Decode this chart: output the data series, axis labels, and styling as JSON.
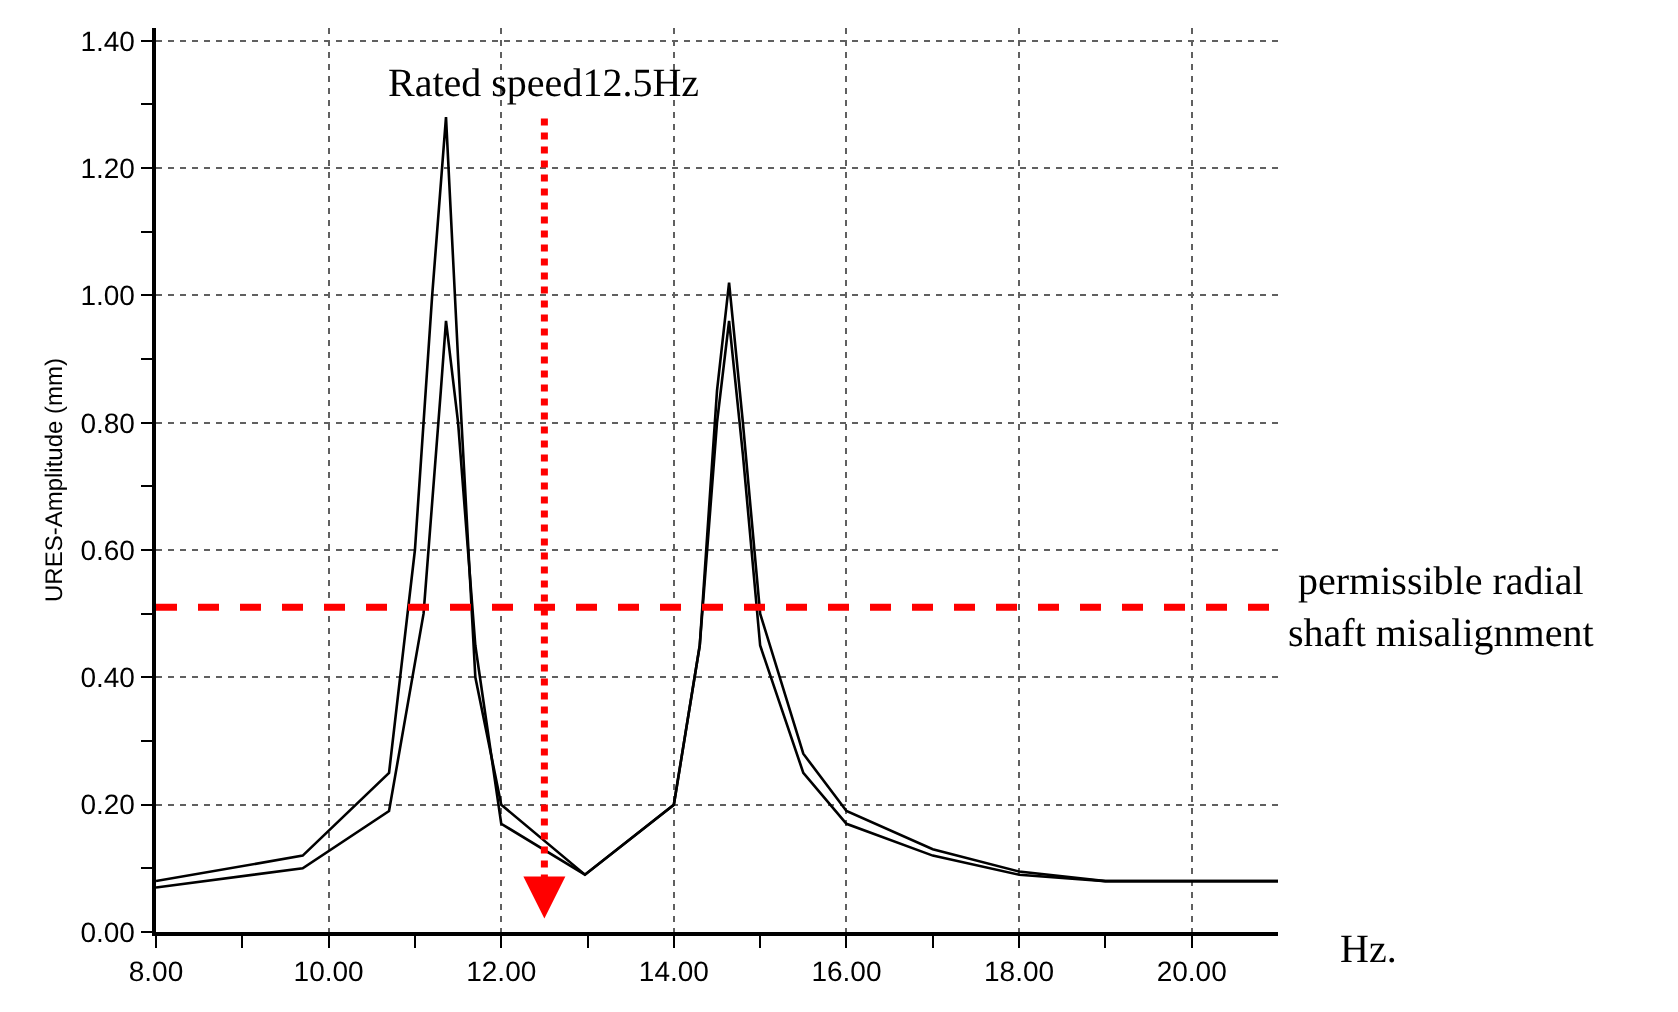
{
  "chart_data": {
    "type": "line",
    "xlabel": "Hz.",
    "ylabel": "URES-Amplitude (mm)",
    "xlim": [
      8,
      21
    ],
    "xticks": [
      {
        "value": 8,
        "label": "8.00"
      },
      {
        "value": 9,
        "label": null
      },
      {
        "value": 10,
        "label": "10.00"
      },
      {
        "value": 11,
        "label": null
      },
      {
        "value": 12,
        "label": "12.00"
      },
      {
        "value": 13,
        "label": null
      },
      {
        "value": 14,
        "label": "14.00"
      },
      {
        "value": 15,
        "label": null
      },
      {
        "value": 16,
        "label": "16.00"
      },
      {
        "value": 17,
        "label": null
      },
      {
        "value": 18,
        "label": "18.00"
      },
      {
        "value": 19,
        "label": null
      },
      {
        "value": 20,
        "label": "20.00"
      }
    ],
    "ylim": [
      0,
      1.42
    ],
    "yticks": [
      {
        "value": 0,
        "label": "0.00"
      },
      {
        "value": 0.1,
        "label": null
      },
      {
        "value": 0.2,
        "label": "0.20"
      },
      {
        "value": 0.3,
        "label": null
      },
      {
        "value": 0.4,
        "label": "0.40"
      },
      {
        "value": 0.5,
        "label": null
      },
      {
        "value": 0.6,
        "label": "0.60"
      },
      {
        "value": 0.7,
        "label": null
      },
      {
        "value": 0.8,
        "label": "0.80"
      },
      {
        "value": 0.9,
        "label": null
      },
      {
        "value": 1.0,
        "label": "1.00"
      },
      {
        "value": 1.1,
        "label": null
      },
      {
        "value": 1.2,
        "label": "1.20"
      },
      {
        "value": 1.3,
        "label": null
      },
      {
        "value": 1.4,
        "label": "1.40"
      }
    ],
    "grid": true,
    "line_style": "solid",
    "series": [
      {
        "color": "#000000",
        "x": [
          8,
          9.7,
          10.7,
          11.0,
          11.2,
          11.36,
          11.5,
          11.7,
          12.0,
          12.97,
          14.0,
          14.3,
          14.5,
          14.64,
          14.8,
          15.0,
          15.5,
          16,
          17,
          18,
          19,
          21
        ],
        "values": [
          0.08,
          0.12,
          0.25,
          0.6,
          1.0,
          1.28,
          0.9,
          0.4,
          0.2,
          0.09,
          0.2,
          0.45,
          0.8,
          0.96,
          0.75,
          0.45,
          0.25,
          0.17,
          0.12,
          0.09,
          0.08,
          0.08
        ]
      },
      {
        "color": "#000000",
        "x": [
          8,
          9.7,
          10.7,
          11.1,
          11.3,
          11.36,
          11.5,
          11.7,
          12.0,
          12.97,
          14.0,
          14.3,
          14.5,
          14.64,
          14.8,
          15.0,
          15.5,
          16,
          17,
          18,
          19,
          21
        ],
        "values": [
          0.07,
          0.1,
          0.19,
          0.5,
          0.85,
          0.96,
          0.8,
          0.45,
          0.17,
          0.09,
          0.2,
          0.45,
          0.85,
          1.02,
          0.8,
          0.5,
          0.28,
          0.19,
          0.13,
          0.095,
          0.08,
          0.08
        ]
      }
    ],
    "ref_lines": [
      {
        "axis": "y",
        "value": 0.51,
        "label": "permissible radial shaft misalignment",
        "color": "#ff0000",
        "line_style": "dashed"
      },
      {
        "axis": "x",
        "value": 12.5,
        "label": "Rated speed12.5Hz",
        "color": "#ff0000",
        "line_style": "dotted"
      }
    ]
  }
}
